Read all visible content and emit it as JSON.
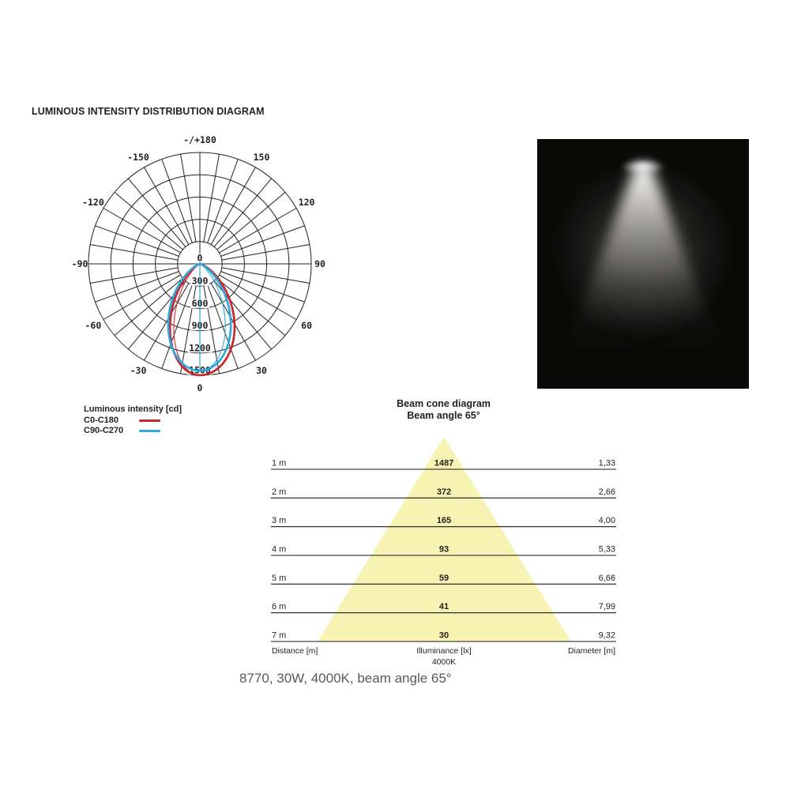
{
  "page": {
    "title": "LUMINOUS INTENSITY DISTRIBUTION DIAGRAM",
    "caption": "8770, 30W, 4000K, beam angle 65°"
  },
  "polar_legend": {
    "title": "Luminous intensity [cd]",
    "items": [
      {
        "label": "C0-C180",
        "color": "#c9262b"
      },
      {
        "label": "C90-C270",
        "color": "#2fa8dc"
      }
    ]
  },
  "beam_cone": {
    "title": "Beam cone diagram",
    "subtitle": "Beam angle 65°"
  },
  "chart_data": [
    {
      "type": "line",
      "subtype": "polar-luminous-intensity",
      "title": "Luminous intensity [cd]",
      "units": "cd",
      "ring_values": [
        300,
        600,
        900,
        1200,
        1500
      ],
      "ring_label_color": "#231f20",
      "center_label": "0",
      "bottom_label": "0",
      "angle_step_deg": 10,
      "angle_labels": [
        {
          "deg": 180,
          "text": "-/+180"
        },
        {
          "deg": 150,
          "text": "150"
        },
        {
          "deg": -150,
          "text": "-150"
        },
        {
          "deg": 120,
          "text": "120"
        },
        {
          "deg": -120,
          "text": "-120"
        },
        {
          "deg": 90,
          "text": "90"
        },
        {
          "deg": -90,
          "text": "-90"
        },
        {
          "deg": 60,
          "text": "60"
        },
        {
          "deg": -60,
          "text": "-60"
        },
        {
          "deg": 30,
          "text": "30"
        },
        {
          "deg": -30,
          "text": "-30"
        },
        {
          "deg": 0,
          "text": "0"
        }
      ],
      "series": [
        {
          "name": "C0-C180",
          "color": "#c9262b",
          "peak_cd": 1500,
          "model": {
            "exp_left": 4.6,
            "exp_right": 3.3,
            "inner_exp": 6.2,
            "inner_side": "left"
          }
        },
        {
          "name": "C90-C270",
          "color": "#2fa8dc",
          "peak_cd": 1440,
          "model": {
            "exp_left": 3.7,
            "exp_right": 3.9,
            "inner_exp": 6.0,
            "inner_side": "right"
          }
        }
      ]
    },
    {
      "type": "table",
      "subtype": "beam-cone",
      "title": "Beam cone diagram",
      "subtitle": "Beam angle 65°",
      "beam_angle_deg": 65,
      "cone_color": "#f7f3b3",
      "columns": [
        "Distance [m]",
        "Illuminance [lx]",
        "Diameter [m]"
      ],
      "center_note": "4000K",
      "rows": [
        {
          "distance": "1 m",
          "illuminance": "1487",
          "diameter": "1,33"
        },
        {
          "distance": "2 m",
          "illuminance": "372",
          "diameter": "2,66"
        },
        {
          "distance": "3 m",
          "illuminance": "165",
          "diameter": "4,00"
        },
        {
          "distance": "4 m",
          "illuminance": "93",
          "diameter": "5,33"
        },
        {
          "distance": "5 m",
          "illuminance": "59",
          "diameter": "6,66"
        },
        {
          "distance": "6 m",
          "illuminance": "41",
          "diameter": "7,99"
        },
        {
          "distance": "7 m",
          "illuminance": "30",
          "diameter": "9,32"
        }
      ]
    }
  ]
}
